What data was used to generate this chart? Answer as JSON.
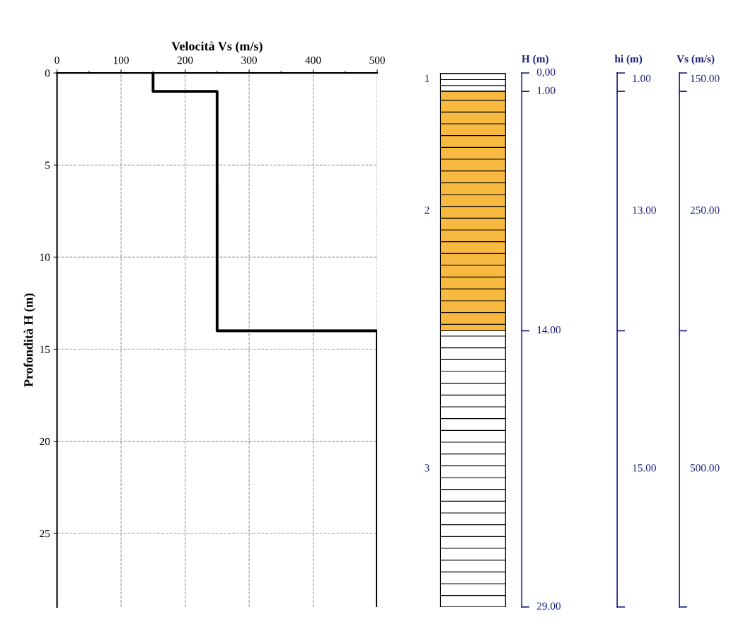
{
  "chart_data": [
    {
      "type": "line",
      "xlabel": "Velocità Vs (m/s)",
      "ylabel": "Profondità H (m)",
      "xlim": [
        0,
        500
      ],
      "ylim": [
        29,
        0
      ],
      "xticks": [
        0,
        {
          "value": 50,
          "label": null
        },
        100,
        {
          "value": 150,
          "label": null
        },
        200,
        {
          "value": 250,
          "label": null
        },
        300,
        {
          "value": 350,
          "label": null
        },
        400,
        {
          "value": 450,
          "label": null
        },
        500
      ],
      "yticks": [
        0,
        5,
        10,
        15,
        20,
        25
      ],
      "grid": true,
      "marker": "none",
      "line_style": "solid",
      "series": [
        {
          "color": "#000000",
          "x": [
            150,
            150,
            250,
            250,
            500,
            500
          ],
          "values": [
            0,
            1,
            1,
            14,
            14,
            29
          ]
        }
      ]
    },
    {
      "type": "other",
      "colors": [
        "#ffffff",
        "#f7b940",
        "#ffffff"
      ],
      "annotations": [
        "H (m)",
        "hi (m)",
        "Vs (m/s)",
        "0,00",
        "1.00",
        "14.00",
        "29.00",
        "1",
        "2",
        "3",
        "1.00",
        "13.00",
        "15.00",
        "150.00",
        "250.00",
        "500.00"
      ]
    }
  ]
}
